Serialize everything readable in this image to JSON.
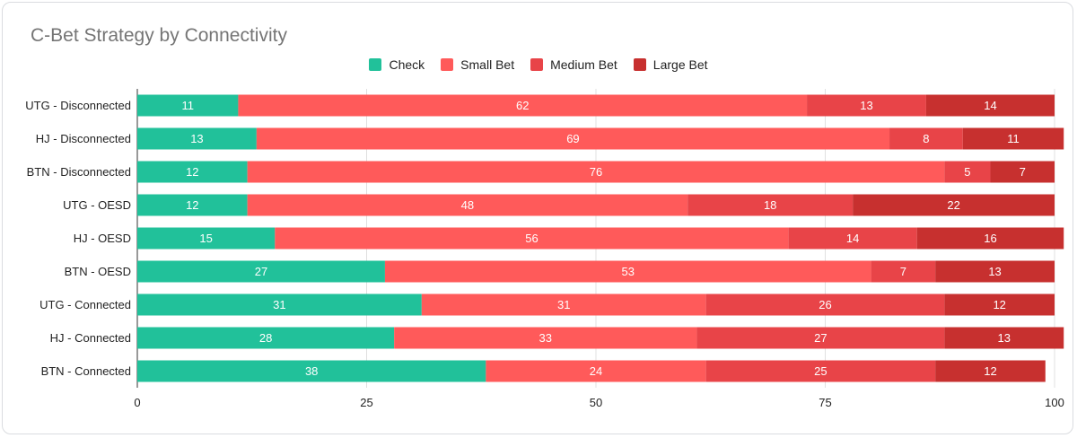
{
  "chart_data": {
    "type": "bar",
    "orientation": "horizontal",
    "stacked": true,
    "title": "C-Bet Strategy by Connectivity",
    "legend_position": "top-center",
    "grid": true,
    "xlim": [
      0,
      100
    ],
    "x_ticks": [
      "0",
      "25",
      "50",
      "75",
      "100"
    ],
    "categories": [
      "UTG - Disconnected",
      "HJ - Disconnected",
      "BTN - Disconnected",
      "UTG - OESD",
      "HJ - OESD",
      "BTN - OESD",
      "UTG - Connected",
      "HJ - Connected",
      "BTN - Connected"
    ],
    "series": [
      {
        "name": "Check",
        "color": "#21c19a",
        "values": [
          11,
          13,
          12,
          12,
          15,
          27,
          31,
          28,
          38
        ]
      },
      {
        "name": "Small Bet",
        "color": "#ff5a5a",
        "values": [
          62,
          69,
          76,
          48,
          56,
          53,
          31,
          33,
          24
        ]
      },
      {
        "name": "Medium Bet",
        "color": "#e84448",
        "values": [
          13,
          8,
          5,
          18,
          14,
          7,
          26,
          27,
          25
        ]
      },
      {
        "name": "Large Bet",
        "color": "#c7302f",
        "values": [
          14,
          11,
          7,
          22,
          16,
          13,
          12,
          13,
          12
        ]
      }
    ]
  }
}
